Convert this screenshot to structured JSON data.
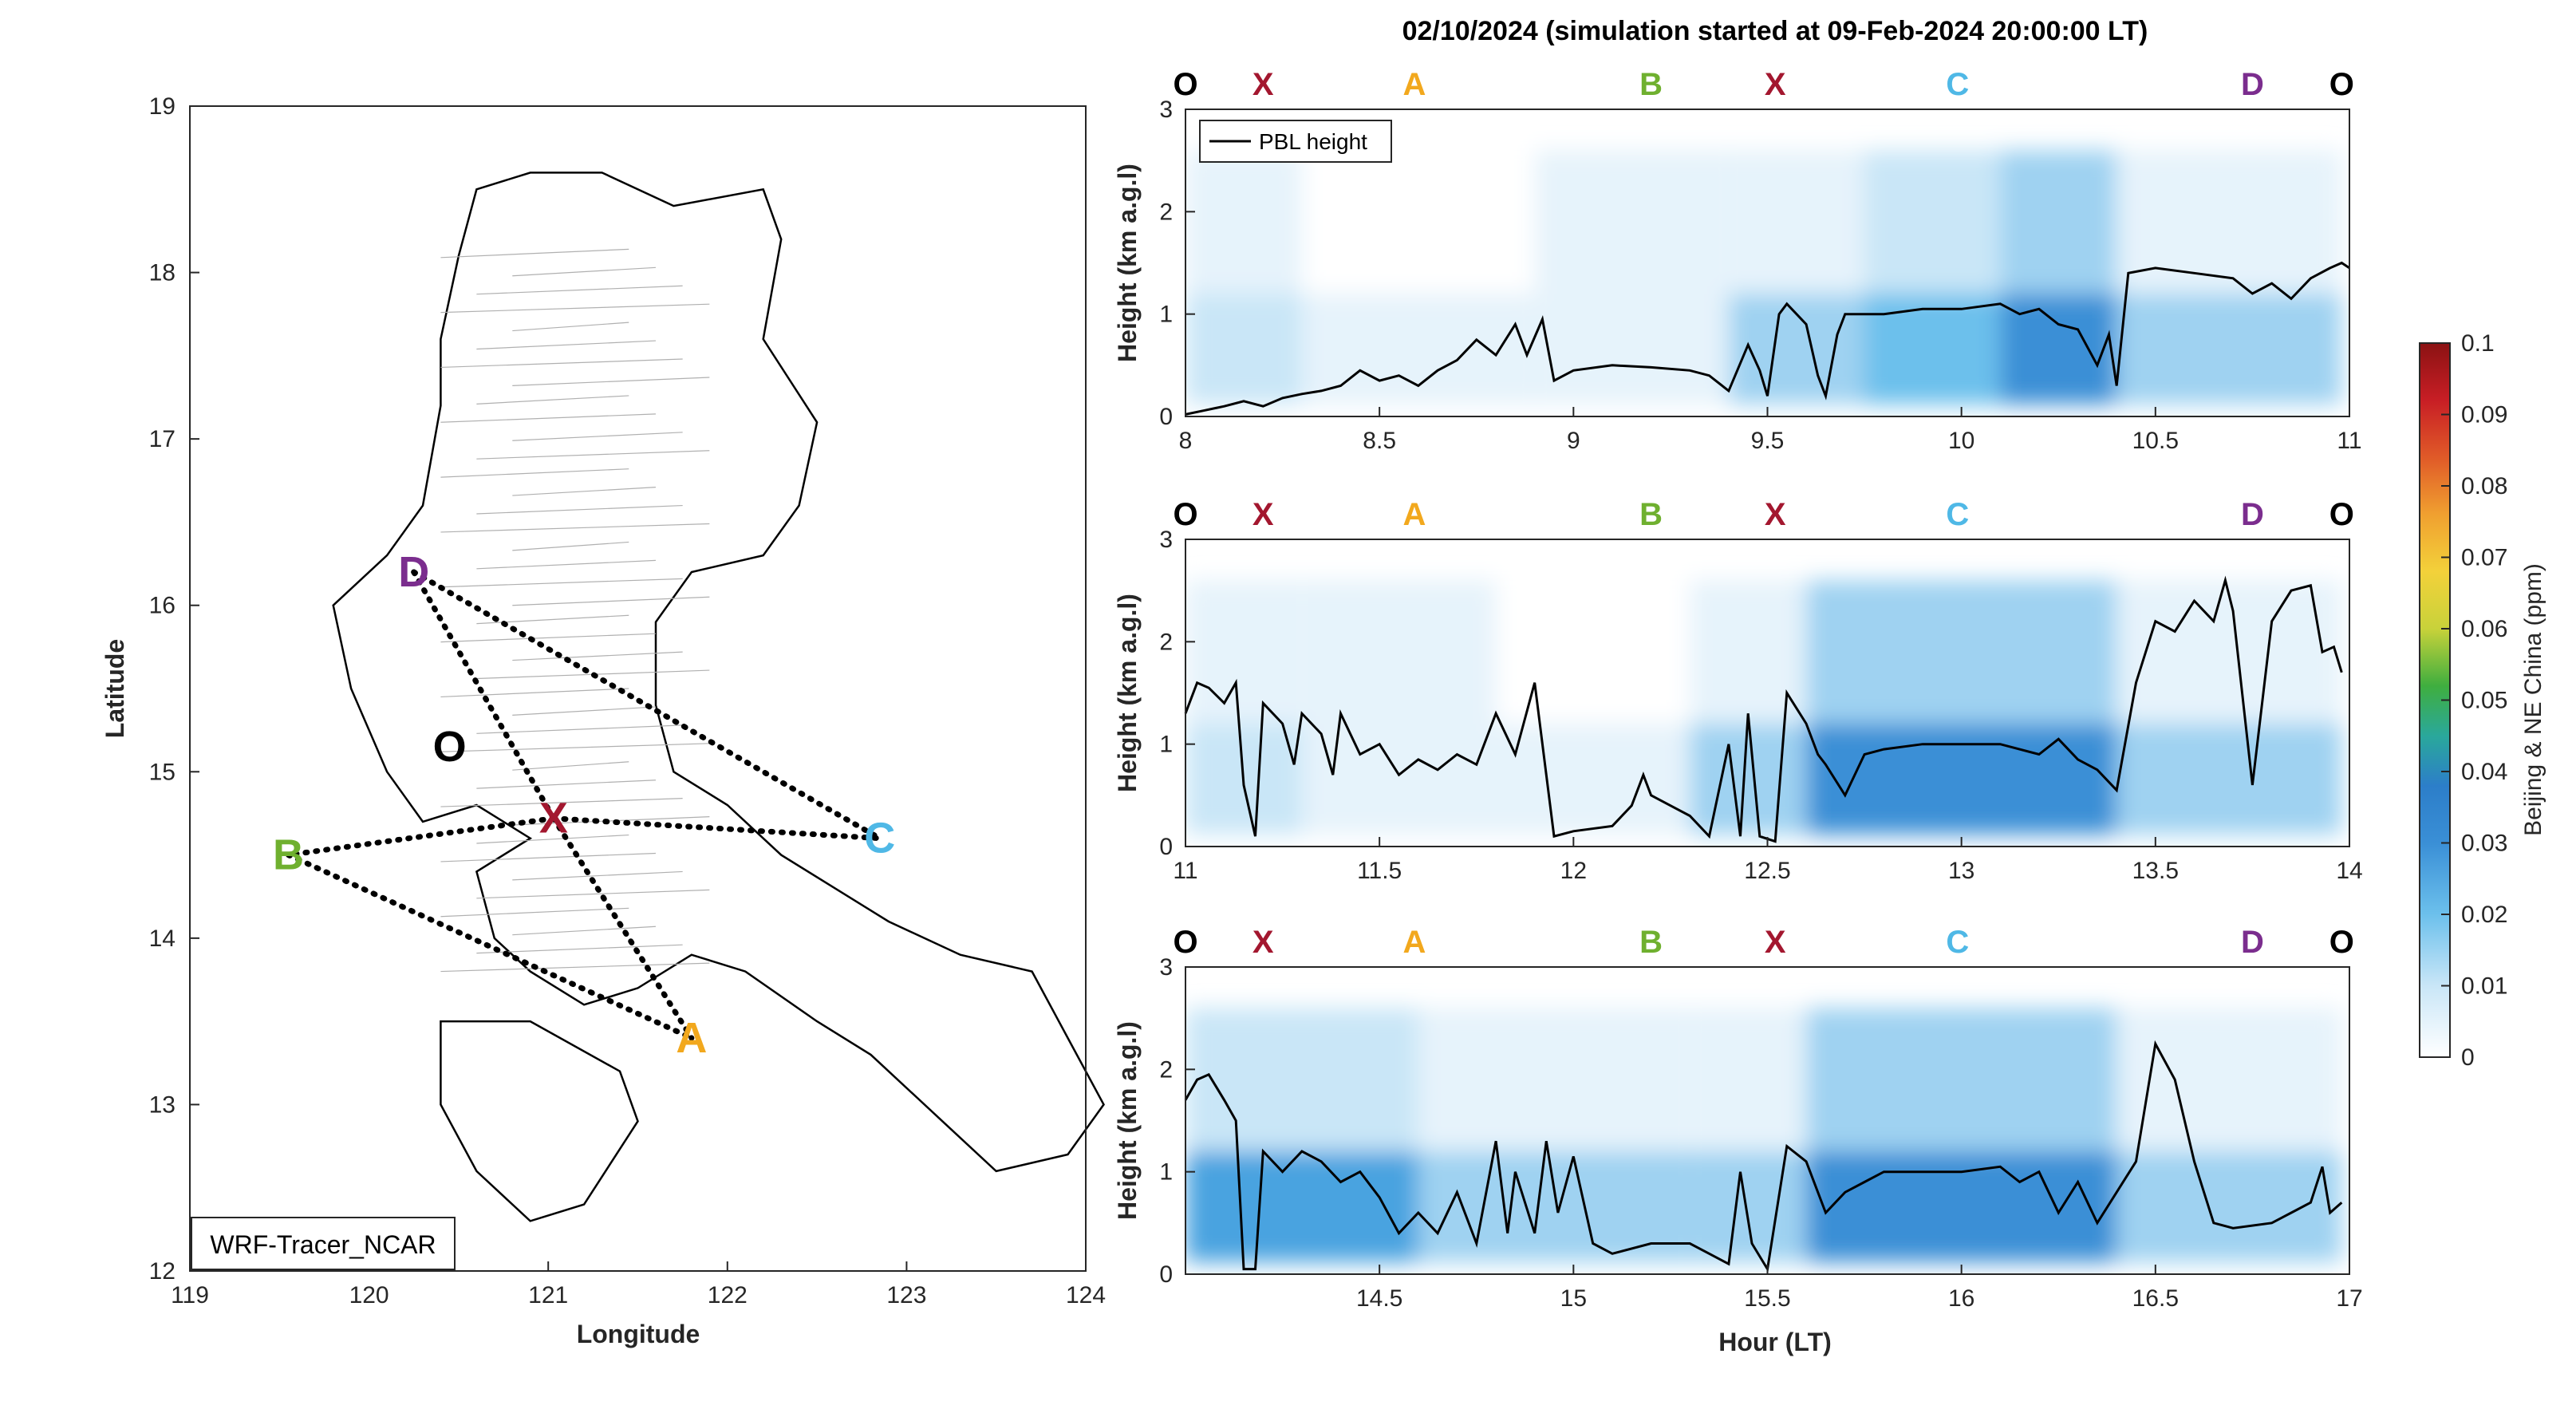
{
  "figure": {
    "title": "02/10/2024 (simulation started at 09-Feb-2024 20:00:00 LT)",
    "colorbar": {
      "label": "Beijing & NE China (ppm)",
      "ticks": [
        "0",
        "0.01",
        "0.02",
        "0.03",
        "0.04",
        "0.05",
        "0.06",
        "0.07",
        "0.08",
        "0.09",
        "0.1"
      ],
      "colormap": [
        "#ffffff",
        "#c9e6f7",
        "#6cc0ec",
        "#3a8fd6",
        "#2c7ec9",
        "#2aa89b",
        "#3fae3f",
        "#c8d23a",
        "#f3d13a",
        "#f0a030",
        "#e05a28",
        "#c81e25",
        "#8b1213"
      ]
    }
  },
  "map": {
    "xlabel": "Longitude",
    "ylabel": "Latitude",
    "xticks": [
      "119",
      "120",
      "121",
      "122",
      "123",
      "124"
    ],
    "yticks": [
      "12",
      "13",
      "14",
      "15",
      "16",
      "17",
      "18",
      "19"
    ],
    "xlim": [
      119,
      124
    ],
    "ylim": [
      12,
      19
    ],
    "model_label": "WRF-Tracer_NCAR",
    "points": [
      {
        "name": "D",
        "lon": 120.25,
        "lat": 16.2,
        "color": "#7b2d8e"
      },
      {
        "name": "O",
        "lon": 120.45,
        "lat": 15.15,
        "color": "#000000"
      },
      {
        "name": "X",
        "lon": 121.03,
        "lat": 14.72,
        "color": "#a3172f"
      },
      {
        "name": "C",
        "lon": 122.85,
        "lat": 14.6,
        "color": "#4fb8e6"
      },
      {
        "name": "B",
        "lon": 119.55,
        "lat": 14.5,
        "color": "#6fb02f"
      },
      {
        "name": "A",
        "lon": 121.8,
        "lat": 13.4,
        "color": "#f2a81d"
      }
    ]
  },
  "panels": [
    {
      "xlim": [
        8,
        11
      ],
      "xticks": [
        "8",
        "8.5",
        "9",
        "9.5",
        "10",
        "10.5",
        "11"
      ],
      "ylabel": "Height (km a.g.l)",
      "yticks": [
        "0",
        "1",
        "2",
        "3"
      ],
      "legend": "PBL height",
      "markers": [
        {
          "label": "O",
          "hour": 8.0,
          "color": "#000000"
        },
        {
          "label": "X",
          "hour": 8.2,
          "color": "#a3172f"
        },
        {
          "label": "A",
          "hour": 8.59,
          "color": "#f2a81d"
        },
        {
          "label": "B",
          "hour": 9.2,
          "color": "#6fb02f"
        },
        {
          "label": "X",
          "hour": 9.52,
          "color": "#a3172f"
        },
        {
          "label": "C",
          "hour": 9.99,
          "color": "#4fb8e6"
        },
        {
          "label": "D",
          "hour": 10.75,
          "color": "#7b2d8e"
        },
        {
          "label": "O",
          "hour": 10.98,
          "color": "#000000"
        }
      ],
      "pbl": [
        [
          8.0,
          0.02
        ],
        [
          8.05,
          0.06
        ],
        [
          8.1,
          0.1
        ],
        [
          8.15,
          0.15
        ],
        [
          8.2,
          0.1
        ],
        [
          8.25,
          0.18
        ],
        [
          8.3,
          0.22
        ],
        [
          8.35,
          0.25
        ],
        [
          8.4,
          0.3
        ],
        [
          8.45,
          0.45
        ],
        [
          8.5,
          0.35
        ],
        [
          8.55,
          0.4
        ],
        [
          8.6,
          0.3
        ],
        [
          8.65,
          0.45
        ],
        [
          8.7,
          0.55
        ],
        [
          8.75,
          0.75
        ],
        [
          8.8,
          0.6
        ],
        [
          8.85,
          0.9
        ],
        [
          8.88,
          0.6
        ],
        [
          8.92,
          0.95
        ],
        [
          8.95,
          0.35
        ],
        [
          9.0,
          0.45
        ],
        [
          9.1,
          0.5
        ],
        [
          9.2,
          0.48
        ],
        [
          9.3,
          0.45
        ],
        [
          9.35,
          0.4
        ],
        [
          9.4,
          0.25
        ],
        [
          9.45,
          0.7
        ],
        [
          9.48,
          0.45
        ],
        [
          9.5,
          0.2
        ],
        [
          9.53,
          1.0
        ],
        [
          9.55,
          1.1
        ],
        [
          9.6,
          0.9
        ],
        [
          9.63,
          0.4
        ],
        [
          9.65,
          0.2
        ],
        [
          9.68,
          0.8
        ],
        [
          9.7,
          1.0
        ],
        [
          9.8,
          1.0
        ],
        [
          9.9,
          1.05
        ],
        [
          10.0,
          1.05
        ],
        [
          10.1,
          1.1
        ],
        [
          10.15,
          1.0
        ],
        [
          10.2,
          1.05
        ],
        [
          10.25,
          0.9
        ],
        [
          10.3,
          0.85
        ],
        [
          10.35,
          0.5
        ],
        [
          10.38,
          0.8
        ],
        [
          10.4,
          0.3
        ],
        [
          10.43,
          1.4
        ],
        [
          10.5,
          1.45
        ],
        [
          10.6,
          1.4
        ],
        [
          10.7,
          1.35
        ],
        [
          10.75,
          1.2
        ],
        [
          10.8,
          1.3
        ],
        [
          10.85,
          1.15
        ],
        [
          10.9,
          1.35
        ],
        [
          10.95,
          1.45
        ],
        [
          10.98,
          1.5
        ],
        [
          11.0,
          1.45
        ]
      ],
      "conc_bands": [
        {
          "x0": 8.0,
          "x1": 8.3,
          "level": 0.008
        },
        {
          "x0": 8.3,
          "x1": 8.9,
          "level": 0.004
        },
        {
          "x0": 8.9,
          "x1": 9.4,
          "level": 0.006
        },
        {
          "x0": 9.4,
          "x1": 9.75,
          "level": 0.014
        },
        {
          "x0": 9.75,
          "x1": 10.1,
          "level": 0.018
        },
        {
          "x0": 10.1,
          "x1": 10.4,
          "level": 0.026
        },
        {
          "x0": 10.4,
          "x1": 10.98,
          "level": 0.014
        }
      ]
    },
    {
      "xlim": [
        11,
        14
      ],
      "xticks": [
        "11",
        "11.5",
        "12",
        "12.5",
        "13",
        "13.5",
        "14"
      ],
      "ylabel": "Height (km a.g.l)",
      "yticks": [
        "0",
        "1",
        "2",
        "3"
      ],
      "markers": [
        {
          "label": "O",
          "hour": 11.0,
          "color": "#000000"
        },
        {
          "label": "X",
          "hour": 11.2,
          "color": "#a3172f"
        },
        {
          "label": "A",
          "hour": 11.59,
          "color": "#f2a81d"
        },
        {
          "label": "B",
          "hour": 12.2,
          "color": "#6fb02f"
        },
        {
          "label": "X",
          "hour": 12.52,
          "color": "#a3172f"
        },
        {
          "label": "C",
          "hour": 12.99,
          "color": "#4fb8e6"
        },
        {
          "label": "D",
          "hour": 13.75,
          "color": "#7b2d8e"
        },
        {
          "label": "O",
          "hour": 13.98,
          "color": "#000000"
        }
      ],
      "pbl": [
        [
          11.0,
          1.3
        ],
        [
          11.03,
          1.6
        ],
        [
          11.06,
          1.55
        ],
        [
          11.1,
          1.4
        ],
        [
          11.13,
          1.6
        ],
        [
          11.15,
          0.6
        ],
        [
          11.18,
          0.1
        ],
        [
          11.2,
          1.4
        ],
        [
          11.25,
          1.2
        ],
        [
          11.28,
          0.8
        ],
        [
          11.3,
          1.3
        ],
        [
          11.35,
          1.1
        ],
        [
          11.38,
          0.7
        ],
        [
          11.4,
          1.3
        ],
        [
          11.45,
          0.9
        ],
        [
          11.5,
          1.0
        ],
        [
          11.55,
          0.7
        ],
        [
          11.6,
          0.85
        ],
        [
          11.65,
          0.75
        ],
        [
          11.7,
          0.9
        ],
        [
          11.75,
          0.8
        ],
        [
          11.8,
          1.3
        ],
        [
          11.85,
          0.9
        ],
        [
          11.9,
          1.6
        ],
        [
          11.95,
          0.1
        ],
        [
          12.0,
          0.15
        ],
        [
          12.1,
          0.2
        ],
        [
          12.15,
          0.4
        ],
        [
          12.18,
          0.7
        ],
        [
          12.2,
          0.5
        ],
        [
          12.25,
          0.4
        ],
        [
          12.3,
          0.3
        ],
        [
          12.35,
          0.1
        ],
        [
          12.4,
          1.0
        ],
        [
          12.43,
          0.1
        ],
        [
          12.45,
          1.3
        ],
        [
          12.48,
          0.1
        ],
        [
          12.52,
          0.05
        ],
        [
          12.55,
          1.5
        ],
        [
          12.6,
          1.2
        ],
        [
          12.63,
          0.9
        ],
        [
          12.65,
          0.8
        ],
        [
          12.7,
          0.5
        ],
        [
          12.75,
          0.9
        ],
        [
          12.8,
          0.95
        ],
        [
          12.9,
          1.0
        ],
        [
          13.0,
          1.0
        ],
        [
          13.1,
          1.0
        ],
        [
          13.2,
          0.9
        ],
        [
          13.25,
          1.05
        ],
        [
          13.3,
          0.85
        ],
        [
          13.35,
          0.75
        ],
        [
          13.4,
          0.55
        ],
        [
          13.45,
          1.6
        ],
        [
          13.5,
          2.2
        ],
        [
          13.55,
          2.1
        ],
        [
          13.6,
          2.4
        ],
        [
          13.65,
          2.2
        ],
        [
          13.68,
          2.6
        ],
        [
          13.7,
          2.3
        ],
        [
          13.75,
          0.6
        ],
        [
          13.8,
          2.2
        ],
        [
          13.85,
          2.5
        ],
        [
          13.9,
          2.55
        ],
        [
          13.93,
          1.9
        ],
        [
          13.96,
          1.95
        ],
        [
          13.98,
          1.7
        ]
      ],
      "conc_bands": [
        {
          "x0": 11.0,
          "x1": 11.3,
          "level": 0.01
        },
        {
          "x0": 11.3,
          "x1": 11.8,
          "level": 0.005
        },
        {
          "x0": 11.8,
          "x1": 12.3,
          "level": 0.003
        },
        {
          "x0": 12.3,
          "x1": 12.6,
          "level": 0.012
        },
        {
          "x0": 12.6,
          "x1": 13.4,
          "level": 0.026
        },
        {
          "x0": 13.4,
          "x1": 13.98,
          "level": 0.012
        }
      ]
    },
    {
      "xlim": [
        14,
        17
      ],
      "xticks": [
        "14.5",
        "15",
        "15.5",
        "16",
        "16.5",
        "17"
      ],
      "xlabel": "Hour (LT)",
      "ylabel": "Height (km a.g.l)",
      "yticks": [
        "0",
        "1",
        "2",
        "3"
      ],
      "markers": [
        {
          "label": "O",
          "hour": 14.0,
          "color": "#000000"
        },
        {
          "label": "X",
          "hour": 14.2,
          "color": "#a3172f"
        },
        {
          "label": "A",
          "hour": 14.59,
          "color": "#f2a81d"
        },
        {
          "label": "B",
          "hour": 15.2,
          "color": "#6fb02f"
        },
        {
          "label": "X",
          "hour": 15.52,
          "color": "#a3172f"
        },
        {
          "label": "C",
          "hour": 15.99,
          "color": "#4fb8e6"
        },
        {
          "label": "D",
          "hour": 16.75,
          "color": "#7b2d8e"
        },
        {
          "label": "O",
          "hour": 16.98,
          "color": "#000000"
        }
      ],
      "pbl": [
        [
          14.0,
          1.7
        ],
        [
          14.03,
          1.9
        ],
        [
          14.06,
          1.95
        ],
        [
          14.1,
          1.7
        ],
        [
          14.13,
          1.5
        ],
        [
          14.15,
          0.05
        ],
        [
          14.18,
          0.05
        ],
        [
          14.2,
          1.2
        ],
        [
          14.25,
          1.0
        ],
        [
          14.3,
          1.2
        ],
        [
          14.35,
          1.1
        ],
        [
          14.4,
          0.9
        ],
        [
          14.45,
          1.0
        ],
        [
          14.5,
          0.75
        ],
        [
          14.55,
          0.4
        ],
        [
          14.6,
          0.6
        ],
        [
          14.65,
          0.4
        ],
        [
          14.7,
          0.8
        ],
        [
          14.75,
          0.3
        ],
        [
          14.8,
          1.3
        ],
        [
          14.83,
          0.4
        ],
        [
          14.85,
          1.0
        ],
        [
          14.9,
          0.4
        ],
        [
          14.93,
          1.3
        ],
        [
          14.96,
          0.6
        ],
        [
          15.0,
          1.15
        ],
        [
          15.05,
          0.3
        ],
        [
          15.1,
          0.2
        ],
        [
          15.2,
          0.3
        ],
        [
          15.3,
          0.3
        ],
        [
          15.35,
          0.2
        ],
        [
          15.4,
          0.1
        ],
        [
          15.43,
          1.0
        ],
        [
          15.46,
          0.3
        ],
        [
          15.5,
          0.05
        ],
        [
          15.55,
          1.25
        ],
        [
          15.6,
          1.1
        ],
        [
          15.65,
          0.6
        ],
        [
          15.7,
          0.8
        ],
        [
          15.75,
          0.9
        ],
        [
          15.8,
          1.0
        ],
        [
          15.9,
          1.0
        ],
        [
          16.0,
          1.0
        ],
        [
          16.1,
          1.05
        ],
        [
          16.15,
          0.9
        ],
        [
          16.2,
          1.0
        ],
        [
          16.25,
          0.6
        ],
        [
          16.3,
          0.9
        ],
        [
          16.35,
          0.5
        ],
        [
          16.4,
          0.8
        ],
        [
          16.45,
          1.1
        ],
        [
          16.5,
          2.25
        ],
        [
          16.55,
          1.9
        ],
        [
          16.6,
          1.1
        ],
        [
          16.65,
          0.5
        ],
        [
          16.7,
          0.45
        ],
        [
          16.8,
          0.5
        ],
        [
          16.85,
          0.6
        ],
        [
          16.9,
          0.7
        ],
        [
          16.93,
          1.05
        ],
        [
          16.95,
          0.6
        ],
        [
          16.98,
          0.7
        ]
      ],
      "conc_bands": [
        {
          "x0": 14.0,
          "x1": 14.6,
          "level": 0.02
        },
        {
          "x0": 14.6,
          "x1": 15.3,
          "level": 0.014
        },
        {
          "x0": 15.3,
          "x1": 15.6,
          "level": 0.012
        },
        {
          "x0": 15.6,
          "x1": 16.4,
          "level": 0.027
        },
        {
          "x0": 16.4,
          "x1": 16.98,
          "level": 0.014
        }
      ]
    }
  ]
}
